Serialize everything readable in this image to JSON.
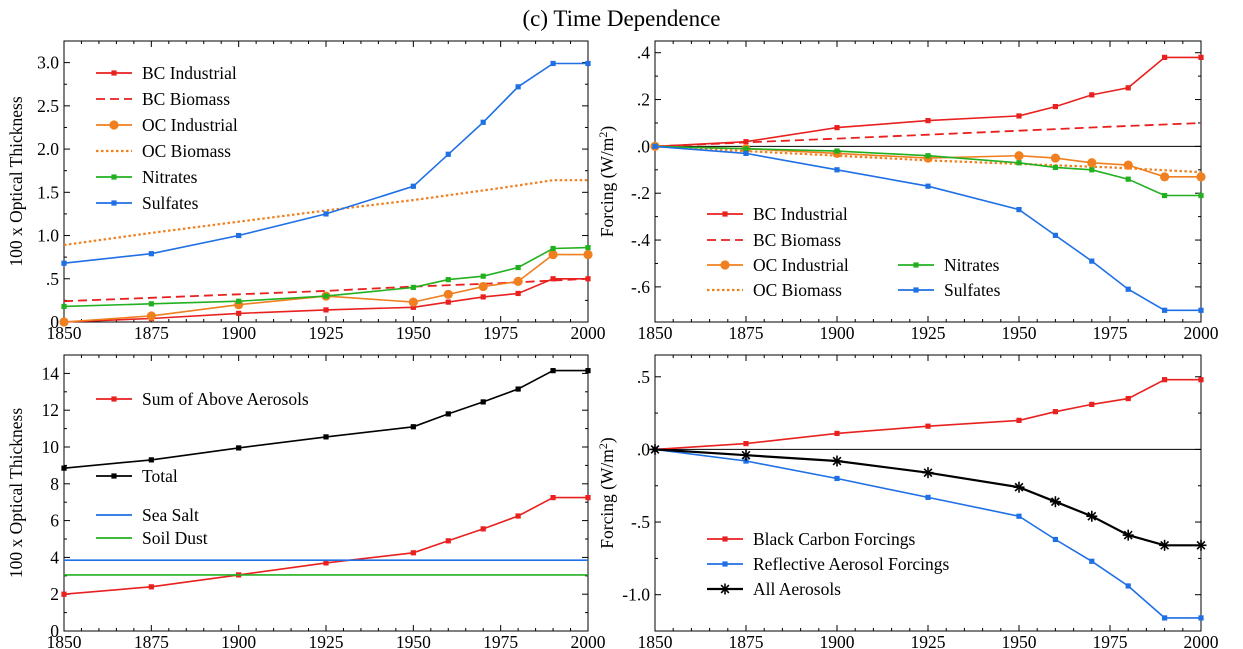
{
  "figure": {
    "title": "(c)  Time Dependence"
  },
  "chart_data": [
    {
      "type": "line",
      "panel": "top-left",
      "ylabel": "100 x Optical Thickness",
      "xlim": [
        1850,
        2000
      ],
      "ylim": [
        0,
        3.25
      ],
      "xticks": [
        1850,
        1875,
        1900,
        1925,
        1950,
        1975,
        2000
      ],
      "xtick_labels": [
        "1850",
        "1875",
        "1900",
        "1925",
        "1950",
        "1975",
        "2000"
      ],
      "yticks": [
        0,
        0.5,
        1.0,
        1.5,
        2.0,
        2.5,
        3.0
      ],
      "ytick_labels": [
        "0",
        ".5",
        "1.0",
        "1.5",
        "2.0",
        "2.5",
        "3.0"
      ],
      "legend": "top-left",
      "series": [
        {
          "name": "BC Industrial",
          "color": "#e8211f",
          "style": "solid",
          "marker": "square",
          "x": [
            1850,
            1875,
            1900,
            1925,
            1950,
            1960,
            1970,
            1980,
            1990,
            2000
          ],
          "y": [
            0.0,
            0.04,
            0.1,
            0.14,
            0.17,
            0.23,
            0.29,
            0.33,
            0.5,
            0.5
          ]
        },
        {
          "name": "BC Biomass",
          "color": "#e8211f",
          "style": "dashed",
          "marker": "none",
          "x": [
            1850,
            1875,
            1900,
            1925,
            1950,
            1975,
            2000
          ],
          "y": [
            0.24,
            0.28,
            0.32,
            0.36,
            0.41,
            0.45,
            0.5
          ]
        },
        {
          "name": "OC Industrial",
          "color": "#f07f1f",
          "style": "solid",
          "marker": "circle",
          "x": [
            1850,
            1875,
            1900,
            1925,
            1950,
            1960,
            1970,
            1980,
            1990,
            2000
          ],
          "y": [
            0.0,
            0.07,
            0.2,
            0.3,
            0.23,
            0.32,
            0.41,
            0.47,
            0.78,
            0.78
          ]
        },
        {
          "name": "OC Biomass",
          "color": "#f07f1f",
          "style": "dotted",
          "marker": "none",
          "x": [
            1850,
            1875,
            1900,
            1925,
            1950,
            1975,
            1990,
            2000
          ],
          "y": [
            0.89,
            1.03,
            1.16,
            1.29,
            1.41,
            1.55,
            1.64,
            1.64
          ]
        },
        {
          "name": "Nitrates",
          "color": "#22b021",
          "style": "solid",
          "marker": "square",
          "x": [
            1850,
            1875,
            1900,
            1925,
            1950,
            1960,
            1970,
            1980,
            1990,
            2000
          ],
          "y": [
            0.18,
            0.21,
            0.24,
            0.3,
            0.4,
            0.49,
            0.53,
            0.63,
            0.85,
            0.86
          ]
        },
        {
          "name": "Sulfates",
          "color": "#1f6fe5",
          "style": "solid",
          "marker": "square",
          "x": [
            1850,
            1875,
            1900,
            1925,
            1950,
            1960,
            1970,
            1980,
            1990,
            2000
          ],
          "y": [
            0.68,
            0.79,
            1.0,
            1.25,
            1.57,
            1.94,
            2.31,
            2.72,
            2.99,
            2.99
          ]
        }
      ]
    },
    {
      "type": "line",
      "panel": "top-right",
      "ylabel": "Forcing (W/m²)",
      "xlim": [
        1850,
        2000
      ],
      "ylim": [
        -0.75,
        0.45
      ],
      "xticks": [
        1850,
        1875,
        1900,
        1925,
        1950,
        1975,
        2000
      ],
      "xtick_labels": [
        "1850",
        "1875",
        "1900",
        "1925",
        "1950",
        "1975",
        "2000"
      ],
      "yticks": [
        -0.6,
        -0.4,
        -0.2,
        0.0,
        0.2,
        0.4
      ],
      "ytick_labels": [
        "-.6",
        "-.4",
        "-.2",
        ".0",
        ".2",
        ".4"
      ],
      "zero_line": true,
      "legend": "lower-left, two columns",
      "series": [
        {
          "name": "BC Industrial",
          "color": "#e8211f",
          "style": "solid",
          "marker": "square",
          "x": [
            1850,
            1875,
            1900,
            1925,
            1950,
            1960,
            1970,
            1980,
            1990,
            2000
          ],
          "y": [
            0.0,
            0.02,
            0.08,
            0.11,
            0.13,
            0.17,
            0.22,
            0.25,
            0.38,
            0.38
          ]
        },
        {
          "name": "BC Biomass",
          "color": "#e8211f",
          "style": "dashed",
          "marker": "none",
          "x": [
            1850,
            1875,
            1900,
            1925,
            1950,
            1975,
            2000
          ],
          "y": [
            0.0,
            0.017,
            0.033,
            0.05,
            0.067,
            0.084,
            0.1
          ]
        },
        {
          "name": "OC Industrial",
          "color": "#f07f1f",
          "style": "solid",
          "marker": "circle",
          "x": [
            1850,
            1875,
            1900,
            1925,
            1950,
            1960,
            1970,
            1980,
            1990,
            2000
          ],
          "y": [
            0.0,
            -0.01,
            -0.03,
            -0.05,
            -0.04,
            -0.05,
            -0.07,
            -0.08,
            -0.13,
            -0.13
          ]
        },
        {
          "name": "OC Biomass",
          "color": "#f07f1f",
          "style": "dotted",
          "marker": "none",
          "x": [
            1850,
            1875,
            1900,
            1925,
            1950,
            1975,
            2000
          ],
          "y": [
            0.0,
            -0.02,
            -0.04,
            -0.06,
            -0.075,
            -0.09,
            -0.11
          ]
        },
        {
          "name": "Nitrates",
          "color": "#22b021",
          "style": "solid",
          "marker": "square",
          "x": [
            1850,
            1875,
            1900,
            1925,
            1950,
            1960,
            1970,
            1980,
            1990,
            2000
          ],
          "y": [
            0.0,
            -0.01,
            -0.02,
            -0.04,
            -0.07,
            -0.09,
            -0.1,
            -0.14,
            -0.21,
            -0.21
          ]
        },
        {
          "name": "Sulfates",
          "color": "#1f6fe5",
          "style": "solid",
          "marker": "square",
          "x": [
            1850,
            1875,
            1900,
            1925,
            1950,
            1960,
            1970,
            1980,
            1990,
            2000
          ],
          "y": [
            0.0,
            -0.03,
            -0.1,
            -0.17,
            -0.27,
            -0.38,
            -0.49,
            -0.61,
            -0.7,
            -0.7
          ]
        }
      ]
    },
    {
      "type": "line",
      "panel": "bottom-left",
      "ylabel": "100 x Optical Thickness",
      "xlim": [
        1850,
        2000
      ],
      "ylim": [
        0,
        15
      ],
      "xticks": [
        1850,
        1875,
        1900,
        1925,
        1950,
        1975,
        2000
      ],
      "xtick_labels": [
        "1850",
        "1875",
        "1900",
        "1925",
        "1950",
        "1975",
        "2000"
      ],
      "yticks": [
        0,
        2,
        4,
        6,
        8,
        10,
        12,
        14
      ],
      "ytick_labels": [
        "0",
        "2",
        "4",
        "6",
        "8",
        "10",
        "12",
        "14"
      ],
      "legend": "left, spread vertically",
      "series": [
        {
          "name": "Sum of Above Aerosols",
          "color": "#e8211f",
          "style": "solid",
          "marker": "square",
          "x": [
            1850,
            1875,
            1900,
            1925,
            1950,
            1960,
            1970,
            1980,
            1990,
            2000
          ],
          "y": [
            2.0,
            2.4,
            3.05,
            3.7,
            4.25,
            4.9,
            5.55,
            6.25,
            7.25,
            7.25
          ]
        },
        {
          "name": "Total",
          "color": "#000000",
          "style": "solid",
          "marker": "square",
          "x": [
            1850,
            1875,
            1900,
            1925,
            1950,
            1960,
            1970,
            1980,
            1990,
            2000
          ],
          "y": [
            8.85,
            9.3,
            9.95,
            10.55,
            11.1,
            11.8,
            12.45,
            13.15,
            14.15,
            14.15
          ]
        },
        {
          "name": "Sea Salt",
          "color": "#1f6fe5",
          "style": "solid",
          "marker": "none",
          "x": [
            1850,
            2000
          ],
          "y": [
            3.85,
            3.85
          ]
        },
        {
          "name": "Soil Dust",
          "color": "#22b021",
          "style": "solid",
          "marker": "none",
          "x": [
            1850,
            2000
          ],
          "y": [
            3.05,
            3.05
          ]
        }
      ]
    },
    {
      "type": "line",
      "panel": "bottom-right",
      "ylabel": "Forcing (W/m²)",
      "xlim": [
        1850,
        2000
      ],
      "ylim": [
        -1.25,
        0.65
      ],
      "xticks": [
        1850,
        1875,
        1900,
        1925,
        1950,
        1975,
        2000
      ],
      "xtick_labels": [
        "1850",
        "1875",
        "1900",
        "1925",
        "1950",
        "1975",
        "2000"
      ],
      "yticks": [
        -1.0,
        -0.5,
        0.0,
        0.5
      ],
      "ytick_labels": [
        "-1.0",
        "-.5",
        ".0",
        ".5"
      ],
      "zero_line": true,
      "legend": "lower-left",
      "series": [
        {
          "name": "Black Carbon Forcings",
          "color": "#e8211f",
          "style": "solid",
          "marker": "square",
          "x": [
            1850,
            1875,
            1900,
            1925,
            1950,
            1960,
            1970,
            1980,
            1990,
            2000
          ],
          "y": [
            0.0,
            0.04,
            0.11,
            0.16,
            0.2,
            0.26,
            0.31,
            0.35,
            0.48,
            0.48
          ]
        },
        {
          "name": "Reflective Aerosol Forcings",
          "color": "#1f6fe5",
          "style": "solid",
          "marker": "square",
          "x": [
            1850,
            1875,
            1900,
            1925,
            1950,
            1960,
            1970,
            1980,
            1990,
            2000
          ],
          "y": [
            0.0,
            -0.08,
            -0.2,
            -0.33,
            -0.46,
            -0.62,
            -0.77,
            -0.94,
            -1.16,
            -1.16
          ]
        },
        {
          "name": "All Aerosols",
          "color": "#000000",
          "style": "solid",
          "marker": "star",
          "x": [
            1850,
            1875,
            1900,
            1925,
            1950,
            1960,
            1970,
            1980,
            1990,
            2000
          ],
          "y": [
            0.0,
            -0.04,
            -0.08,
            -0.16,
            -0.26,
            -0.36,
            -0.46,
            -0.59,
            -0.66,
            -0.66
          ]
        }
      ]
    }
  ]
}
